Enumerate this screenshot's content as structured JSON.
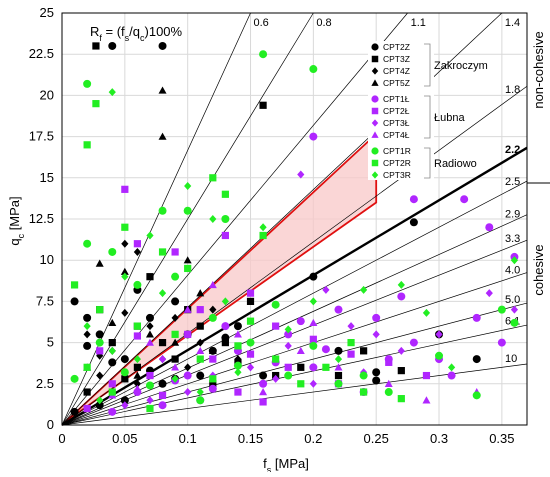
{
  "chart_data": {
    "type": "scatter",
    "xlabel": "f",
    "xlabel_sub": "s",
    "xlabel_unit": " [MPa]",
    "ylabel": "q",
    "ylabel_sub": "c",
    "ylabel_unit": " [MPa]",
    "xlim": [
      0,
      0.37
    ],
    "ylim": [
      0,
      25
    ],
    "x_ticks": [
      0,
      0.05,
      0.1,
      0.15,
      0.2,
      0.25,
      0.3,
      0.35
    ],
    "x_tick_labels": [
      "0",
      "0.05",
      "0.1",
      "0.15",
      "0.2",
      "0.25",
      "0.3",
      "0.35"
    ],
    "y_ticks": [
      0,
      2.5,
      5,
      7.5,
      10,
      12.5,
      15,
      17.5,
      20,
      22.5,
      25
    ],
    "y_tick_labels": [
      "0",
      "2.5",
      "5",
      "7.5",
      "10",
      "12.5",
      "15",
      "17.5",
      "20",
      "22.5",
      "25"
    ],
    "grid": true,
    "formula": {
      "prefix": "R",
      "prefix_sub": "f",
      "middle": " = (f",
      "middle_sub1": "s",
      "slash": "/q",
      "middle_sub2": "c",
      "suffix": ")100%"
    },
    "ratio_lines": [
      {
        "label": "0.6",
        "rf": 0.6,
        "bold": false
      },
      {
        "label": "0.8",
        "rf": 0.8,
        "bold": false
      },
      {
        "label": "1.1",
        "rf": 1.1,
        "bold": false
      },
      {
        "label": "1.4",
        "rf": 1.4,
        "bold": false
      },
      {
        "label": "1.8",
        "rf": 1.8,
        "bold": false
      },
      {
        "label": "2.2",
        "rf": 2.2,
        "bold": true
      },
      {
        "label": "2.5",
        "rf": 2.5,
        "bold": false
      },
      {
        "label": "2.9",
        "rf": 2.9,
        "bold": false
      },
      {
        "label": "3.3",
        "rf": 3.3,
        "bold": false
      },
      {
        "label": "4.0",
        "rf": 4.0,
        "bold": false
      },
      {
        "label": "5.0",
        "rf": 5.0,
        "bold": false
      },
      {
        "label": "6.1",
        "rf": 6.1,
        "bold": false
      },
      {
        "label": "10",
        "rf": 10,
        "bold": false
      }
    ],
    "highlight_region": {
      "polygon": [
        [
          0,
          0
        ],
        [
          0.245,
          17.3
        ],
        [
          0.25,
          17.3
        ],
        [
          0.25,
          13.5
        ],
        [
          0.01,
          0.6
        ]
      ],
      "fill": "#f8c8c8",
      "stroke": "#e01010"
    },
    "legend": {
      "placement": "upper-right inside",
      "groups": [
        {
          "group_label": "Zakroczym",
          "items": [
            {
              "name": "CPT2Z",
              "marker": "circle",
              "color": "#000000"
            },
            {
              "name": "CPT3Z",
              "marker": "square",
              "color": "#000000"
            },
            {
              "name": "CPT4Z",
              "marker": "diamond",
              "color": "#000000"
            },
            {
              "name": "CPT5Z",
              "marker": "triangle",
              "color": "#000000"
            }
          ]
        },
        {
          "group_label": "Łubna",
          "items": [
            {
              "name": "CPT1Ł",
              "marker": "circle",
              "color": "#b026ff"
            },
            {
              "name": "CPT2Ł",
              "marker": "square",
              "color": "#b026ff"
            },
            {
              "name": "CPT3Ł",
              "marker": "diamond",
              "color": "#b026ff"
            },
            {
              "name": "CPT4Ł",
              "marker": "triangle",
              "color": "#b026ff"
            }
          ]
        },
        {
          "group_label": "Radiowo",
          "items": [
            {
              "name": "CPT1R",
              "marker": "circle",
              "color": "#22ee22"
            },
            {
              "name": "CPT2R",
              "marker": "square",
              "color": "#22ee22"
            },
            {
              "name": "CPT3R",
              "marker": "diamond",
              "color": "#22ee22"
            }
          ]
        }
      ]
    },
    "side_labels": {
      "top": "non-cohesive",
      "bottom": "cohesive"
    },
    "series": [
      {
        "name": "CPT2Z",
        "marker": "circle",
        "color": "#000000",
        "points": [
          [
            0.04,
            23
          ],
          [
            0.08,
            23
          ],
          [
            0.01,
            7.5
          ],
          [
            0.02,
            6.5
          ],
          [
            0.03,
            5.5
          ],
          [
            0.05,
            4
          ],
          [
            0.07,
            6.5
          ],
          [
            0.09,
            7.5
          ],
          [
            0.1,
            5.5
          ],
          [
            0.12,
            4.5
          ],
          [
            0.14,
            6
          ],
          [
            0.16,
            3
          ],
          [
            0.2,
            9
          ],
          [
            0.22,
            4.5
          ],
          [
            0.25,
            3.2
          ],
          [
            0.28,
            12.3
          ],
          [
            0.3,
            5.5
          ],
          [
            0.33,
            4
          ],
          [
            0.25,
            2.7
          ],
          [
            0.05,
            1.5
          ],
          [
            0.08,
            2.5
          ],
          [
            0.11,
            3
          ],
          [
            0.06,
            8.2
          ],
          [
            0.02,
            4.8
          ],
          [
            0.04,
            3.8
          ],
          [
            0.07,
            3.3
          ],
          [
            0.09,
            2.8
          ],
          [
            0.13,
            5.3
          ],
          [
            0.03,
            1.2
          ],
          [
            0.01,
            0.8
          ]
        ]
      },
      {
        "name": "CPT3Z",
        "marker": "square",
        "color": "#000000",
        "points": [
          [
            0.027,
            23
          ],
          [
            0.16,
            19.4
          ],
          [
            0.03,
            7
          ],
          [
            0.06,
            6
          ],
          [
            0.08,
            5
          ],
          [
            0.1,
            7
          ],
          [
            0.13,
            5
          ],
          [
            0.15,
            7.5
          ],
          [
            0.17,
            3
          ],
          [
            0.19,
            3.5
          ],
          [
            0.22,
            3
          ],
          [
            0.24,
            4.5
          ],
          [
            0.27,
            3.3
          ],
          [
            0.04,
            5
          ],
          [
            0.06,
            3.5
          ],
          [
            0.09,
            4
          ],
          [
            0.12,
            2.5
          ],
          [
            0.02,
            2
          ],
          [
            0.05,
            2.8
          ],
          [
            0.11,
            6
          ],
          [
            0.07,
            9
          ],
          [
            0.14,
            3.8
          ]
        ]
      },
      {
        "name": "CPT4Z",
        "marker": "diamond",
        "color": "#000000",
        "points": [
          [
            0.05,
            11
          ],
          [
            0.06,
            10.5
          ],
          [
            0.07,
            6
          ],
          [
            0.02,
            5.5
          ],
          [
            0.04,
            4.5
          ],
          [
            0.08,
            4
          ],
          [
            0.1,
            3.5
          ],
          [
            0.12,
            7
          ],
          [
            0.14,
            4
          ],
          [
            0.03,
            3
          ],
          [
            0.06,
            2.5
          ],
          [
            0.09,
            6.5
          ],
          [
            0.11,
            5
          ],
          [
            0.05,
            6.8
          ],
          [
            0.03,
            4.2
          ]
        ]
      },
      {
        "name": "CPT5Z",
        "marker": "triangle",
        "color": "#000000",
        "points": [
          [
            0.08,
            20.3
          ],
          [
            0.08,
            17.5
          ],
          [
            0.03,
            9.8
          ],
          [
            0.05,
            9.3
          ],
          [
            0.1,
            10
          ],
          [
            0.07,
            5.5
          ],
          [
            0.09,
            5
          ],
          [
            0.04,
            6.2
          ],
          [
            0.12,
            4.5
          ],
          [
            0.06,
            3
          ],
          [
            0.02,
            3.5
          ],
          [
            0.11,
            8
          ]
        ]
      },
      {
        "name": "CPT1Ł",
        "marker": "circle",
        "color": "#b026ff",
        "points": [
          [
            0.2,
            17.5
          ],
          [
            0.28,
            13.7
          ],
          [
            0.32,
            13.7
          ],
          [
            0.34,
            12
          ],
          [
            0.36,
            10.2
          ],
          [
            0.13,
            6
          ],
          [
            0.18,
            5.5
          ],
          [
            0.22,
            7
          ],
          [
            0.25,
            6.5
          ],
          [
            0.28,
            5
          ],
          [
            0.3,
            4
          ],
          [
            0.33,
            6.5
          ],
          [
            0.35,
            5
          ],
          [
            0.1,
            3
          ],
          [
            0.14,
            4.5
          ],
          [
            0.16,
            2.5
          ],
          [
            0.2,
            3.5
          ],
          [
            0.24,
            2
          ],
          [
            0.06,
            2
          ],
          [
            0.08,
            1.2
          ],
          [
            0.04,
            0.8
          ],
          [
            0.11,
            1.5
          ],
          [
            0.27,
            7.8
          ],
          [
            0.17,
            3.8
          ],
          [
            0.21,
            4.6
          ],
          [
            0.26,
            4
          ],
          [
            0.31,
            3
          ],
          [
            0.12,
            2.2
          ],
          [
            0.09,
            2.7
          ],
          [
            0.19,
            6.3
          ]
        ]
      },
      {
        "name": "CPT2Ł",
        "marker": "square",
        "color": "#b026ff",
        "points": [
          [
            0.05,
            14.3
          ],
          [
            0.06,
            11
          ],
          [
            0.09,
            10.5
          ],
          [
            0.13,
            11.5
          ],
          [
            0.15,
            8
          ],
          [
            0.1,
            5.5
          ],
          [
            0.12,
            4
          ],
          [
            0.15,
            4.3
          ],
          [
            0.18,
            3.5
          ],
          [
            0.2,
            5.2
          ],
          [
            0.22,
            2.5
          ],
          [
            0.26,
            3.8
          ],
          [
            0.07,
            3
          ],
          [
            0.04,
            2.5
          ],
          [
            0.08,
            1.8
          ],
          [
            0.02,
            1
          ],
          [
            0.14,
            2
          ],
          [
            0.17,
            6
          ],
          [
            0.11,
            7
          ],
          [
            0.23,
            4.3
          ],
          [
            0.29,
            3
          ],
          [
            0.03,
            4.5
          ],
          [
            0.06,
            5.4
          ],
          [
            0.16,
            1.4
          ]
        ]
      },
      {
        "name": "CPT3Ł",
        "marker": "diamond",
        "color": "#b026ff",
        "points": [
          [
            0.19,
            15.2
          ],
          [
            0.21,
            8.2
          ],
          [
            0.23,
            6
          ],
          [
            0.25,
            5.5
          ],
          [
            0.27,
            4.5
          ],
          [
            0.3,
            5.5
          ],
          [
            0.34,
            8
          ],
          [
            0.36,
            7
          ],
          [
            0.12,
            3
          ],
          [
            0.15,
            3.5
          ],
          [
            0.17,
            2.8
          ],
          [
            0.1,
            2
          ],
          [
            0.07,
            1.5
          ],
          [
            0.05,
            1.2
          ],
          [
            0.08,
            4
          ],
          [
            0.13,
            6
          ],
          [
            0.2,
            2.5
          ],
          [
            0.24,
            3.2
          ],
          [
            0.18,
            4.8
          ]
        ]
      },
      {
        "name": "CPT4Ł",
        "marker": "triangle",
        "color": "#b026ff",
        "points": [
          [
            0.12,
            8.5
          ],
          [
            0.1,
            7
          ],
          [
            0.14,
            5.5
          ],
          [
            0.19,
            4.5
          ],
          [
            0.22,
            3.5
          ],
          [
            0.26,
            2.5
          ],
          [
            0.29,
            1.5
          ],
          [
            0.06,
            2.2
          ],
          [
            0.09,
            3.5
          ],
          [
            0.16,
            2
          ],
          [
            0.04,
            1.8
          ],
          [
            0.2,
            6.2
          ],
          [
            0.33,
            2
          ],
          [
            0.11,
            4.5
          ],
          [
            0.07,
            5
          ]
        ]
      },
      {
        "name": "CPT1R",
        "marker": "circle",
        "color": "#22ee22",
        "points": [
          [
            0.16,
            22.5
          ],
          [
            0.2,
            21.6
          ],
          [
            0.02,
            20.7
          ],
          [
            0.1,
            13
          ],
          [
            0.13,
            12.5
          ],
          [
            0.08,
            13
          ],
          [
            0.02,
            11
          ],
          [
            0.04,
            10.5
          ],
          [
            0.06,
            8.5
          ],
          [
            0.09,
            9
          ],
          [
            0.12,
            6.5
          ],
          [
            0.15,
            5
          ],
          [
            0.18,
            3
          ],
          [
            0.22,
            2.5
          ],
          [
            0.26,
            2
          ],
          [
            0.33,
            1.8
          ],
          [
            0.36,
            6.2
          ],
          [
            0.03,
            5
          ],
          [
            0.05,
            3.2
          ],
          [
            0.07,
            2.4
          ],
          [
            0.11,
            1.5
          ],
          [
            0.01,
            2.8
          ],
          [
            0.14,
            3.6
          ],
          [
            0.17,
            7.3
          ],
          [
            0.24,
            3
          ],
          [
            0.3,
            4.2
          ],
          [
            0.35,
            7
          ],
          [
            0.2,
            4.8
          ]
        ]
      },
      {
        "name": "CPT2R",
        "marker": "square",
        "color": "#22ee22",
        "points": [
          [
            0.027,
            19.5
          ],
          [
            0.02,
            17
          ],
          [
            0.12,
            15
          ],
          [
            0.13,
            14
          ],
          [
            0.16,
            11.5
          ],
          [
            0.05,
            12
          ],
          [
            0.08,
            10.5
          ],
          [
            0.1,
            9.5
          ],
          [
            0.01,
            8.5
          ],
          [
            0.03,
            7
          ],
          [
            0.06,
            6
          ],
          [
            0.09,
            5.5
          ],
          [
            0.11,
            4
          ],
          [
            0.14,
            4.8
          ],
          [
            0.17,
            4
          ],
          [
            0.19,
            2.5
          ],
          [
            0.21,
            3.5
          ],
          [
            0.24,
            2
          ],
          [
            0.27,
            1.6
          ],
          [
            0.04,
            2
          ],
          [
            0.07,
            1
          ],
          [
            0.02,
            3.5
          ],
          [
            0.12,
            2.8
          ],
          [
            0.15,
            6.3
          ],
          [
            0.23,
            5
          ]
        ]
      },
      {
        "name": "CPT3R",
        "marker": "diamond",
        "color": "#22ee22",
        "points": [
          [
            0.04,
            20.2
          ],
          [
            0.1,
            14.5
          ],
          [
            0.12,
            12.5
          ],
          [
            0.16,
            12
          ],
          [
            0.07,
            11.5
          ],
          [
            0.05,
            9
          ],
          [
            0.08,
            8
          ],
          [
            0.13,
            7.5
          ],
          [
            0.2,
            7.5
          ],
          [
            0.24,
            8.2
          ],
          [
            0.27,
            8.5
          ],
          [
            0.31,
            3.5
          ],
          [
            0.36,
            10
          ],
          [
            0.02,
            6
          ],
          [
            0.04,
            4.5
          ],
          [
            0.06,
            4
          ],
          [
            0.09,
            2.8
          ],
          [
            0.11,
            2
          ],
          [
            0.14,
            3.2
          ],
          [
            0.18,
            5.8
          ],
          [
            0.22,
            4
          ],
          [
            0.29,
            6.8
          ],
          [
            0.03,
            1.5
          ]
        ]
      }
    ]
  }
}
